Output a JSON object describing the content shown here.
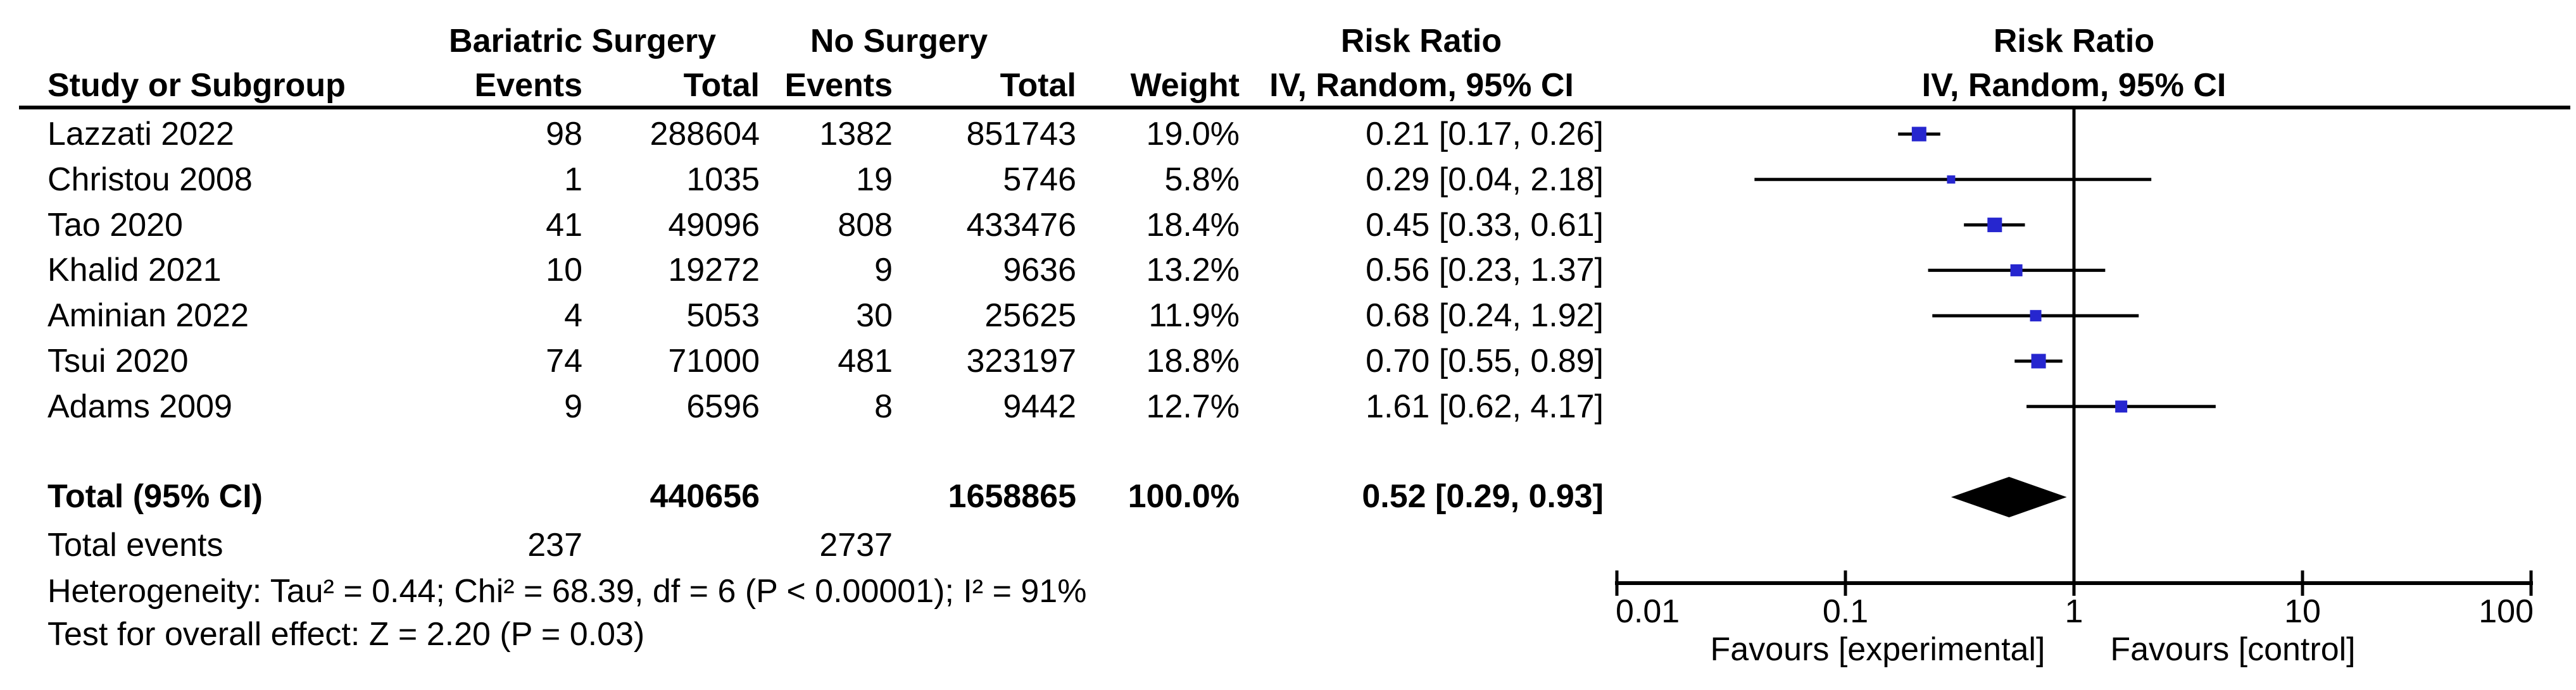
{
  "header": {
    "group_left": "Bariatric Surgery",
    "group_right": "No Surgery",
    "risk_ratio": "Risk Ratio",
    "method": "IV, Random, 95% CI",
    "study_col": "Study or Subgroup",
    "events_col": "Events",
    "total_col": "Total",
    "weight_col": "Weight",
    "plot_title": "Risk Ratio",
    "plot_subtitle": "IV, Random, 95% CI"
  },
  "rows": [
    {
      "study": "Lazzati 2022",
      "e1": "98",
      "t1": "288604",
      "e2": "1382",
      "t2": "851743",
      "weight": "19.0%",
      "rr": "0.21 [0.17, 0.26]"
    },
    {
      "study": "Christou 2008",
      "e1": "1",
      "t1": "1035",
      "e2": "19",
      "t2": "5746",
      "weight": "5.8%",
      "rr": "0.29 [0.04, 2.18]"
    },
    {
      "study": "Tao 2020",
      "e1": "41",
      "t1": "49096",
      "e2": "808",
      "t2": "433476",
      "weight": "18.4%",
      "rr": "0.45 [0.33, 0.61]"
    },
    {
      "study": "Khalid 2021",
      "e1": "10",
      "t1": "19272",
      "e2": "9",
      "t2": "9636",
      "weight": "13.2%",
      "rr": "0.56 [0.23, 1.37]"
    },
    {
      "study": "Aminian 2022",
      "e1": "4",
      "t1": "5053",
      "e2": "30",
      "t2": "25625",
      "weight": "11.9%",
      "rr": "0.68 [0.24, 1.92]"
    },
    {
      "study": "Tsui 2020",
      "e1": "74",
      "t1": "71000",
      "e2": "481",
      "t2": "323197",
      "weight": "18.8%",
      "rr": "0.70 [0.55, 0.89]"
    },
    {
      "study": "Adams 2009",
      "e1": "9",
      "t1": "6596",
      "e2": "8",
      "t2": "9442",
      "weight": "12.7%",
      "rr": "1.61 [0.62, 4.17]"
    }
  ],
  "total_row": {
    "label": "Total (95% CI)",
    "t1": "440656",
    "t2": "1658865",
    "weight": "100.0%",
    "rr": "0.52 [0.29, 0.93]"
  },
  "total_events": {
    "label": "Total events",
    "e1": "237",
    "e2": "2737"
  },
  "footnotes": {
    "heterogeneity": "Heterogeneity: Tau² = 0.44; Chi² = 68.39, df = 6 (P < 0.00001); I² = 91%",
    "overall_effect": "Test for overall effect: Z = 2.20 (P = 0.03)"
  },
  "chart_data": {
    "type": "forest",
    "effect_measure": "Risk Ratio",
    "model": "IV, Random, 95% CI",
    "marker_color": "#2626cf",
    "studies": [
      {
        "name": "Lazzati 2022",
        "events_exp": 98,
        "total_exp": 288604,
        "events_ctrl": 1382,
        "total_ctrl": 851743,
        "weight_pct": 19.0,
        "rr": 0.21,
        "ci_low": 0.17,
        "ci_high": 0.26
      },
      {
        "name": "Christou 2008",
        "events_exp": 1,
        "total_exp": 1035,
        "events_ctrl": 19,
        "total_ctrl": 5746,
        "weight_pct": 5.8,
        "rr": 0.29,
        "ci_low": 0.04,
        "ci_high": 2.18
      },
      {
        "name": "Tao 2020",
        "events_exp": 41,
        "total_exp": 49096,
        "events_ctrl": 808,
        "total_ctrl": 433476,
        "weight_pct": 18.4,
        "rr": 0.45,
        "ci_low": 0.33,
        "ci_high": 0.61
      },
      {
        "name": "Khalid 2021",
        "events_exp": 10,
        "total_exp": 19272,
        "events_ctrl": 9,
        "total_ctrl": 9636,
        "weight_pct": 13.2,
        "rr": 0.56,
        "ci_low": 0.23,
        "ci_high": 1.37
      },
      {
        "name": "Aminian 2022",
        "events_exp": 4,
        "total_exp": 5053,
        "events_ctrl": 30,
        "total_ctrl": 25625,
        "weight_pct": 11.9,
        "rr": 0.68,
        "ci_low": 0.24,
        "ci_high": 1.92
      },
      {
        "name": "Tsui 2020",
        "events_exp": 74,
        "total_exp": 71000,
        "events_ctrl": 481,
        "total_ctrl": 323197,
        "weight_pct": 18.8,
        "rr": 0.7,
        "ci_low": 0.55,
        "ci_high": 0.89
      },
      {
        "name": "Adams 2009",
        "events_exp": 9,
        "total_exp": 6596,
        "events_ctrl": 8,
        "total_ctrl": 9442,
        "weight_pct": 12.7,
        "rr": 1.61,
        "ci_low": 0.62,
        "ci_high": 4.17
      }
    ],
    "total": {
      "name": "Total (95% CI)",
      "total_exp": 440656,
      "total_ctrl": 1658865,
      "weight_pct": 100.0,
      "rr": 0.52,
      "ci_low": 0.29,
      "ci_high": 0.93
    },
    "total_events": {
      "exp": 237,
      "ctrl": 2737
    },
    "heterogeneity": "Tau² = 0.44; Chi² = 68.39, df = 6 (P < 0.00001); I² = 91%",
    "overall_effect": "Z = 2.20 (P = 0.03)",
    "x_axis": {
      "scale": "log",
      "ticks": [
        0.01,
        0.1,
        1,
        10,
        100
      ],
      "tick_labels": [
        "0.01",
        "0.1",
        "1",
        "10",
        "100"
      ],
      "favours_left": "Favours [experimental]",
      "favours_right": "Favours [control]"
    }
  }
}
